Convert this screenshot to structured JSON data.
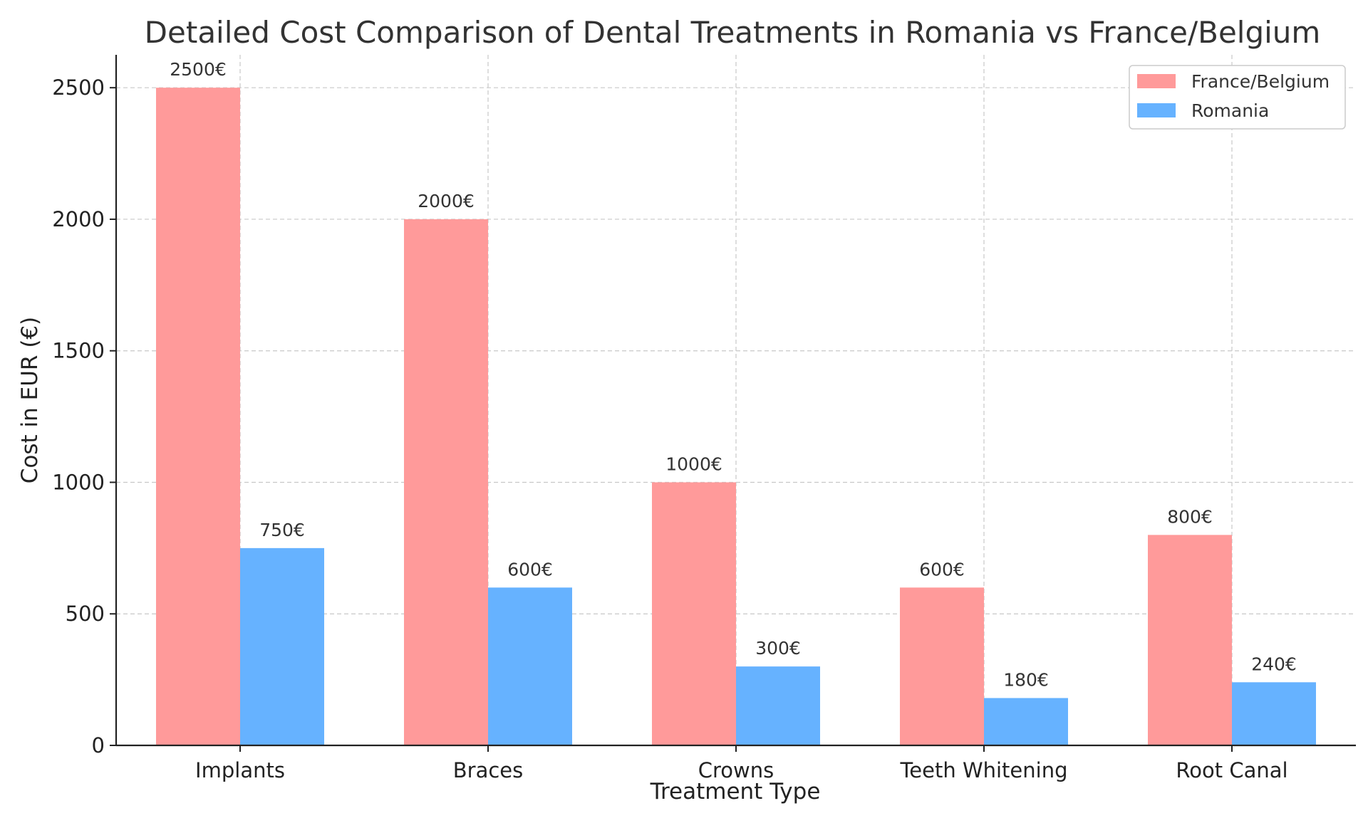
{
  "chart_data": {
    "type": "bar",
    "title": "Detailed Cost Comparison of Dental Treatments in Romania vs France/Belgium",
    "xlabel": "Treatment Type",
    "ylabel": "Cost in EUR (€)",
    "categories": [
      "Implants",
      "Braces",
      "Crowns",
      "Teeth Whitening",
      "Root Canal"
    ],
    "series": [
      {
        "name": "France/Belgium",
        "color": "#ff9a9a",
        "values": [
          2500,
          2000,
          1000,
          600,
          800
        ],
        "labels": [
          "2500€",
          "2000€",
          "1000€",
          "600€",
          "800€"
        ]
      },
      {
        "name": "Romania",
        "color": "#66b2ff",
        "values": [
          750,
          600,
          300,
          180,
          240
        ],
        "labels": [
          "750€",
          "600€",
          "300€",
          "180€",
          "240€"
        ]
      }
    ],
    "ylim": [
      0,
      2625
    ],
    "yticks": [
      0,
      500,
      1000,
      1500,
      2000,
      2500
    ],
    "grid": true,
    "legend_position": "top-right"
  }
}
